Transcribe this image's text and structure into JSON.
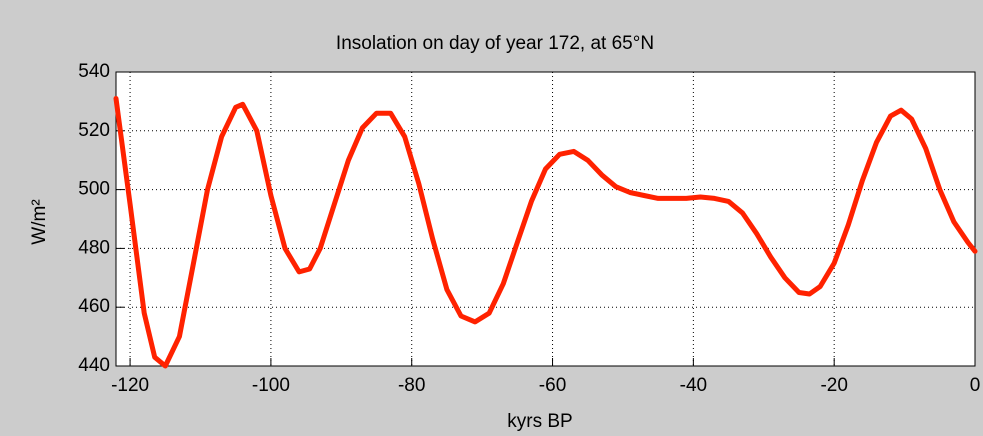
{
  "chart_data": {
    "type": "line",
    "title": "Insolation on day of year 172, at 65°N",
    "xlabel": "kyrs BP",
    "ylabel": "W/m²",
    "x": [
      -122,
      -120,
      -118,
      -116.5,
      -115,
      -113,
      -111,
      -109,
      -107,
      -105,
      -104,
      -102,
      -100,
      -98,
      -96,
      -94.5,
      -93,
      -91,
      -89,
      -87,
      -85,
      -83,
      -81,
      -79,
      -77,
      -75,
      -73,
      -71,
      -69,
      -67,
      -65,
      -63,
      -61,
      -59,
      -57,
      -55,
      -53,
      -51,
      -49,
      -47,
      -45,
      -43,
      -41,
      -39,
      -37,
      -35,
      -33,
      -31,
      -29,
      -27,
      -25,
      -23.5,
      -22,
      -20,
      -18,
      -16,
      -14,
      -12,
      -10.5,
      -9,
      -7,
      -5,
      -3,
      -1,
      0
    ],
    "values": [
      531,
      495,
      458,
      443,
      440,
      450,
      475,
      500,
      518,
      528,
      529,
      520,
      498,
      480,
      472,
      473,
      480,
      495,
      510,
      521,
      526,
      526,
      518,
      502,
      483,
      466,
      457,
      455,
      458,
      468,
      482,
      496,
      507,
      512,
      513,
      510,
      505,
      501,
      499,
      498,
      497,
      497,
      497,
      497.5,
      497,
      496,
      492,
      485,
      477,
      470,
      465,
      464.5,
      467,
      475,
      488,
      503,
      516,
      525,
      527,
      524,
      514,
      500,
      489,
      482,
      479
    ],
    "color": "#ff2200",
    "xlim": [
      -122,
      0
    ],
    "ylim": [
      440,
      540
    ],
    "xticks": [
      -120,
      -100,
      -80,
      -60,
      -40,
      -20,
      0
    ],
    "yticks": [
      440,
      460,
      480,
      500,
      520,
      540
    ],
    "grid": true
  }
}
